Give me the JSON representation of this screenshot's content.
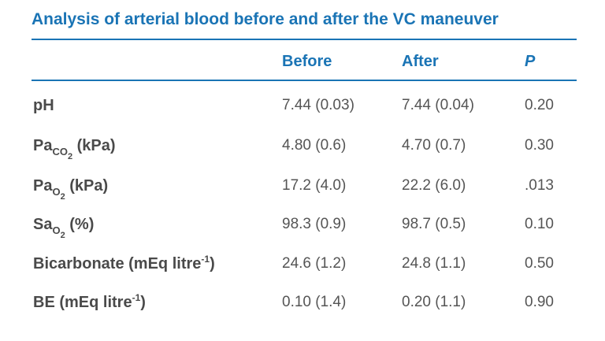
{
  "title": "Analysis of arterial blood before and after the VC maneuver",
  "columns": {
    "before": "Before",
    "after": "After",
    "p": "P"
  },
  "rows": [
    {
      "label": {
        "main": "pH",
        "sub": "",
        "subsub": "",
        "rest": ""
      },
      "before": "7.44 (0.03)",
      "after": "7.44 (0.04)",
      "p": "0.20"
    },
    {
      "label": {
        "main": "Pa",
        "sub": "CO",
        "subsub": "2",
        "rest": " (kPa)"
      },
      "before": "4.80 (0.6)",
      "after": "4.70 (0.7)",
      "p": "0.30"
    },
    {
      "label": {
        "main": "Pa",
        "sub": "O",
        "subsub": "2",
        "rest": " (kPa)"
      },
      "before": "17.2 (4.0)",
      "after": "22.2 (6.0)",
      "p": ".013"
    },
    {
      "label": {
        "main": "Sa",
        "sub": "O",
        "subsub": "2",
        "rest": " (%)"
      },
      "before": "98.3 (0.9)",
      "after": "98.7 (0.5)",
      "p": "0.10"
    },
    {
      "label": {
        "main": "Bicarbonate (mEq litre",
        "sup": "-1",
        "rest": ")"
      },
      "before": "24.6 (1.2)",
      "after": "24.8 (1.1)",
      "p": "0.50"
    },
    {
      "label": {
        "main": "BE (mEq litre",
        "sup": "-1",
        "rest": ")"
      },
      "before": "0.10 (1.4)",
      "after": "0.20 (1.1)",
      "p": "0.90"
    }
  ]
}
